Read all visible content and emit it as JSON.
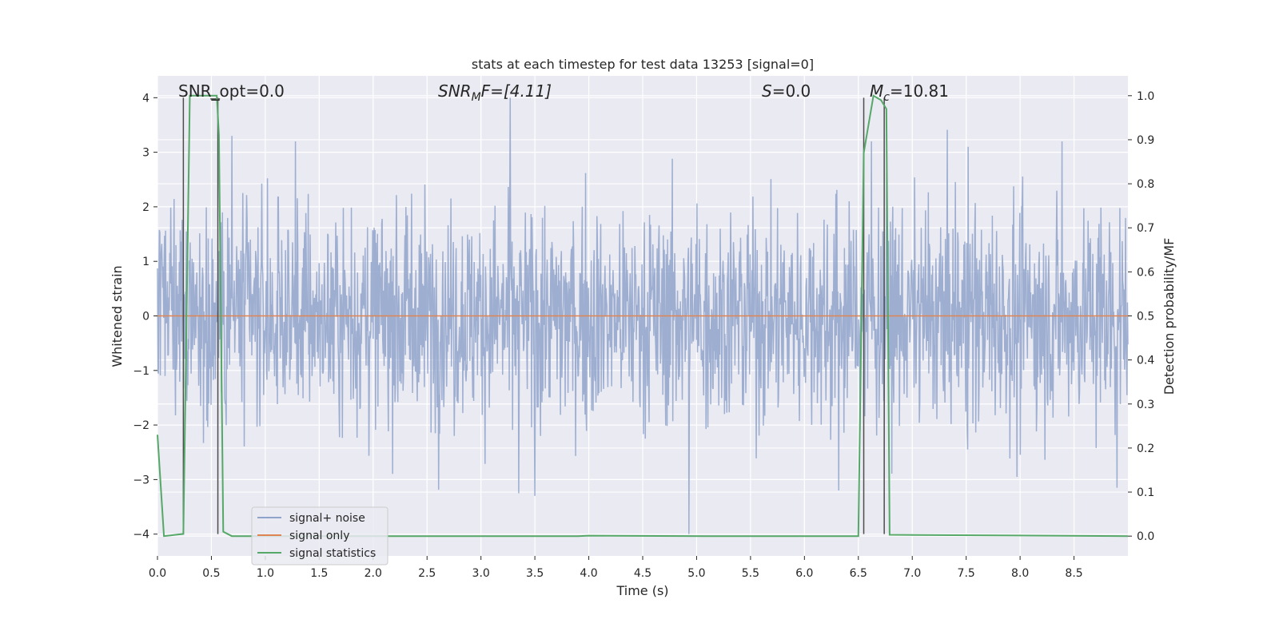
{
  "chart_data": {
    "type": "line",
    "title": "stats at each timestep for test data 13253 [signal=0]",
    "xlabel": "Time (s)",
    "ylabel": "Whitened strain",
    "ylabel_right": "Detection probability/MF",
    "xlim": [
      0.0,
      9.0
    ],
    "ylim": [
      -4.4,
      4.4
    ],
    "ylim_right": [
      -0.045,
      1.045
    ],
    "x_ticks": [
      0.0,
      0.5,
      1.0,
      1.5,
      2.0,
      2.5,
      3.0,
      3.5,
      4.0,
      4.5,
      5.0,
      5.5,
      6.0,
      6.5,
      7.0,
      7.5,
      8.0,
      8.5
    ],
    "x_tick_labels": [
      "0.0",
      "0.5",
      "1.0",
      "1.5",
      "2.0",
      "2.5",
      "3.0",
      "3.5",
      "4.0",
      "4.5",
      "5.0",
      "5.5",
      "6.0",
      "6.5",
      "7.0",
      "7.5",
      "8.0",
      "8.5"
    ],
    "y_ticks": [
      -4,
      -3,
      -2,
      -1,
      0,
      1,
      2,
      3,
      4
    ],
    "y_tick_labels": [
      "−4",
      "−3",
      "−2",
      "−1",
      "0",
      "1",
      "2",
      "3",
      "4"
    ],
    "y_right_ticks": [
      0.0,
      0.1,
      0.2,
      0.3,
      0.4,
      0.5,
      0.6,
      0.7,
      0.8,
      0.9,
      1.0
    ],
    "y_right_tick_labels": [
      "0.0",
      "0.1",
      "0.2",
      "0.3",
      "0.4",
      "0.5",
      "0.6",
      "0.7",
      "0.8",
      "0.9",
      "1.0"
    ],
    "grid": true,
    "legend_position": "lower-left",
    "annotations": {
      "snr_opt": "SNR_opt=0.0",
      "snr_mf_main": "SNR",
      "snr_mf_sub": "M",
      "snr_mf_rest": "F=[4.11]",
      "s_main": "S",
      "s_rest": "=0.0",
      "mc_main": "M",
      "mc_sub": "c",
      "mc_rest": "=10.81"
    },
    "series": [
      {
        "name": "signal+ noise",
        "color": "#8fa3cb",
        "kind": "noise",
        "t_start": 0.0,
        "t_end": 9.0,
        "samples": 2048,
        "amplitude_typical": 1.0,
        "peaks_max": [
          [
            0.69,
            3.3
          ],
          [
            1.28,
            3.2
          ],
          [
            3.27,
            4.0
          ],
          [
            6.62,
            3.2
          ],
          [
            7.52,
            3.1
          ],
          [
            8.39,
            3.2
          ]
        ],
        "peaks_min": [
          [
            3.35,
            -3.25
          ],
          [
            3.5,
            -3.3
          ],
          [
            4.93,
            -4.0
          ],
          [
            6.32,
            -3.2
          ],
          [
            7.97,
            -2.95
          ],
          [
            8.9,
            -3.15
          ]
        ]
      },
      {
        "name": "signal only",
        "color": "#dd8452",
        "values_constant": 0.0
      },
      {
        "name": "signal statistics",
        "color": "#55a868",
        "x": [
          0.0,
          0.06,
          0.24,
          0.3,
          0.55,
          0.57,
          0.61,
          0.69,
          3.9,
          4.0,
          5.1,
          6.5,
          6.55,
          6.64,
          6.71,
          6.76,
          6.79,
          9.0
        ],
        "y": [
          0.23,
          0.0,
          0.005,
          1.0,
          1.0,
          0.91,
          0.01,
          0.0,
          0.0,
          0.001,
          0.0,
          0.0,
          0.87,
          1.0,
          0.99,
          0.97,
          0.003,
          0.0
        ]
      }
    ],
    "vertical_markers": {
      "color": "#4d4d4d",
      "y_range": [
        -4,
        4
      ],
      "x": [
        0.24,
        0.56,
        6.55,
        6.74
      ]
    },
    "small_marker": {
      "x": 0.535,
      "y_right": 1.0
    }
  }
}
